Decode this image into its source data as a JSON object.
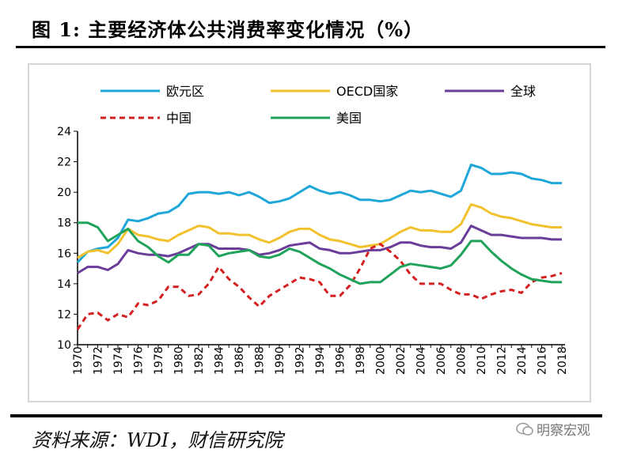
{
  "title": "图 1:  主要经济体公共消费率变化情况（%）",
  "source": "资料来源：WDI，财信研究院",
  "watermark": "明察宏观",
  "chart_data": {
    "type": "line",
    "title": "",
    "xlabel": "",
    "ylabel": "",
    "ylim": [
      10,
      24
    ],
    "yticks": [
      10,
      12,
      14,
      16,
      18,
      20,
      22,
      24
    ],
    "xticks": [
      1970,
      1972,
      1974,
      1976,
      1978,
      1980,
      1982,
      1984,
      1986,
      1988,
      1990,
      1992,
      1994,
      1996,
      1998,
      2000,
      2002,
      2004,
      2006,
      2008,
      2010,
      2012,
      2014,
      2016,
      2018
    ],
    "grid": false,
    "legend_position": "top",
    "x": [
      1970,
      1971,
      1972,
      1973,
      1974,
      1975,
      1976,
      1977,
      1978,
      1979,
      1980,
      1981,
      1982,
      1983,
      1984,
      1985,
      1986,
      1987,
      1988,
      1989,
      1990,
      1991,
      1992,
      1993,
      1994,
      1995,
      1996,
      1997,
      1998,
      1999,
      2000,
      2001,
      2002,
      2003,
      2004,
      2005,
      2006,
      2007,
      2008,
      2009,
      2010,
      2011,
      2012,
      2013,
      2014,
      2015,
      2016,
      2017,
      2018
    ],
    "series": [
      {
        "name": "欧元区",
        "color": "#1ea7d8",
        "dashed": false,
        "values": [
          15.4,
          16.1,
          16.3,
          16.4,
          17.0,
          18.2,
          18.1,
          18.3,
          18.6,
          18.7,
          19.1,
          19.9,
          20.0,
          20.0,
          19.9,
          20.0,
          19.8,
          20.0,
          19.7,
          19.3,
          19.4,
          19.6,
          20.0,
          20.4,
          20.1,
          19.9,
          20.0,
          19.8,
          19.5,
          19.5,
          19.4,
          19.5,
          19.8,
          20.1,
          20.0,
          20.1,
          19.9,
          19.7,
          20.1,
          21.8,
          21.6,
          21.2,
          21.2,
          21.3,
          21.2,
          20.9,
          20.8,
          20.6,
          20.6
        ]
      },
      {
        "name": "OECD国家",
        "color": "#f2c12e",
        "dashed": false,
        "values": [
          15.7,
          16.1,
          16.2,
          16.0,
          16.6,
          17.6,
          17.2,
          17.1,
          16.9,
          16.8,
          17.2,
          17.5,
          17.8,
          17.7,
          17.3,
          17.3,
          17.2,
          17.2,
          16.9,
          16.7,
          17.0,
          17.4,
          17.6,
          17.6,
          17.2,
          16.9,
          16.8,
          16.6,
          16.4,
          16.5,
          16.6,
          17.0,
          17.4,
          17.7,
          17.5,
          17.5,
          17.4,
          17.4,
          17.9,
          19.2,
          19.0,
          18.6,
          18.4,
          18.3,
          18.1,
          17.9,
          17.8,
          17.7,
          17.7
        ]
      },
      {
        "name": "全球",
        "color": "#6a3d9a",
        "dashed": false,
        "values": [
          14.7,
          15.1,
          15.1,
          14.9,
          15.3,
          16.2,
          16.0,
          15.9,
          15.9,
          15.8,
          16.0,
          16.3,
          16.6,
          16.6,
          16.3,
          16.3,
          16.3,
          16.2,
          15.9,
          16.0,
          16.2,
          16.5,
          16.6,
          16.7,
          16.3,
          16.2,
          16.0,
          16.0,
          16.1,
          16.2,
          16.2,
          16.4,
          16.7,
          16.7,
          16.5,
          16.4,
          16.4,
          16.3,
          16.7,
          17.8,
          17.5,
          17.2,
          17.2,
          17.1,
          17.0,
          17.0,
          17.0,
          16.9,
          16.9
        ]
      },
      {
        "name": "中国",
        "color": "#d42020",
        "dashed": true,
        "values": [
          11.0,
          12.0,
          12.1,
          11.6,
          12.0,
          11.8,
          12.7,
          12.6,
          12.9,
          13.8,
          13.8,
          13.2,
          13.3,
          14.0,
          15.1,
          14.3,
          13.8,
          13.1,
          12.5,
          13.2,
          13.6,
          14.0,
          14.4,
          14.3,
          14.1,
          13.2,
          13.2,
          13.9,
          15.0,
          16.3,
          16.6,
          16.1,
          15.5,
          14.6,
          14.0,
          14.0,
          14.0,
          13.6,
          13.3,
          13.3,
          13.0,
          13.3,
          13.5,
          13.6,
          13.4,
          14.1,
          14.4,
          14.5,
          14.7
        ]
      },
      {
        "name": "美国",
        "color": "#1fa35a",
        "dashed": false,
        "values": [
          18.0,
          18.0,
          17.7,
          16.8,
          17.2,
          17.6,
          16.8,
          16.4,
          15.8,
          15.4,
          15.9,
          15.9,
          16.6,
          16.5,
          15.8,
          16.0,
          16.1,
          16.2,
          15.8,
          15.7,
          15.9,
          16.3,
          16.1,
          15.7,
          15.3,
          15.0,
          14.6,
          14.3,
          14.0,
          14.1,
          14.1,
          14.6,
          15.1,
          15.3,
          15.2,
          15.1,
          15.0,
          15.2,
          15.9,
          16.8,
          16.8,
          16.1,
          15.5,
          15.0,
          14.6,
          14.3,
          14.2,
          14.1,
          14.1
        ]
      }
    ]
  }
}
